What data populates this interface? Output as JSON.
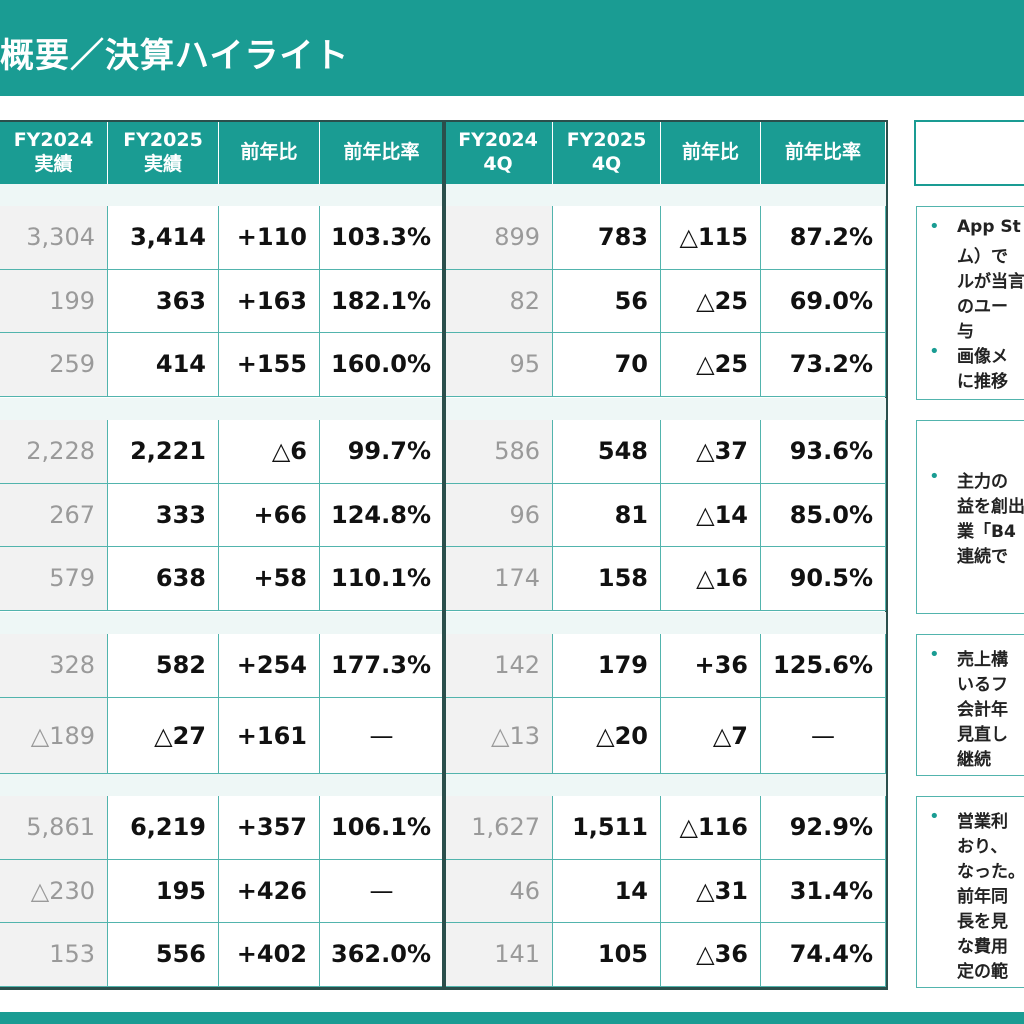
{
  "title": "概要／決算ハイライト",
  "colors": {
    "accent": "#1a9c93",
    "prev_bg": "#f2f2f2",
    "border": "#52b4ad",
    "divider": "#2b4f4c"
  },
  "headers": [
    "FY2024\n実績",
    "FY2025\n実績",
    "前年比",
    "前年比率",
    "FY2024\n4Q",
    "FY2025\n4Q",
    "前年比",
    "前年比率"
  ],
  "groups": [
    {
      "rows": [
        [
          "3,304",
          "3,414",
          "+110",
          "103.3%",
          "899",
          "783",
          "△115",
          "87.2%"
        ],
        [
          "199",
          "363",
          "+163",
          "182.1%",
          "82",
          "56",
          "△25",
          "69.0%"
        ],
        [
          "259",
          "414",
          "+155",
          "160.0%",
          "95",
          "70",
          "△25",
          "73.2%"
        ]
      ]
    },
    {
      "rows": [
        [
          "2,228",
          "2,221",
          "△6",
          "99.7%",
          "586",
          "548",
          "△37",
          "93.6%"
        ],
        [
          "267",
          "333",
          "+66",
          "124.8%",
          "96",
          "81",
          "△14",
          "85.0%"
        ],
        [
          "579",
          "638",
          "+58",
          "110.1%",
          "174",
          "158",
          "△16",
          "90.5%"
        ]
      ]
    },
    {
      "rows": [
        [
          "328",
          "582",
          "+254",
          "177.3%",
          "142",
          "179",
          "+36",
          "125.6%"
        ],
        [
          "△189",
          "△27",
          "+161",
          "—",
          "△13",
          "△20",
          "△7",
          "—"
        ]
      ]
    },
    {
      "rows": [
        [
          "5,861",
          "6,219",
          "+357",
          "106.1%",
          "1,627",
          "1,511",
          "△116",
          "92.9%"
        ],
        [
          "△230",
          "195",
          "+426",
          "—",
          "46",
          "14",
          "△31",
          "31.4%"
        ],
        [
          "153",
          "556",
          "+402",
          "362.0%",
          "141",
          "105",
          "△36",
          "74.4%"
        ]
      ]
    }
  ],
  "comments": [
    {
      "lines": [
        "App St",
        "ム）で",
        "ルが当言",
        "のユー",
        "与",
        "画像メ",
        "に推移"
      ],
      "bullets": [
        0,
        5
      ]
    },
    {
      "lines": [
        "主力の",
        "益を創出",
        "業「B4",
        "連続で"
      ],
      "bullets": [
        0
      ]
    },
    {
      "lines": [
        "売上構",
        "いるフ",
        "会計年",
        "見直し",
        "継続"
      ],
      "bullets": [
        0
      ]
    },
    {
      "lines": [
        "営業利",
        "おり、",
        "なった。",
        "前年同",
        "長を見",
        "な費用",
        "定の範"
      ],
      "bullets": [
        0
      ]
    }
  ]
}
